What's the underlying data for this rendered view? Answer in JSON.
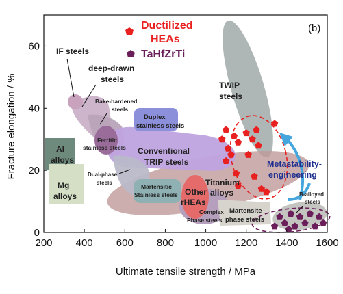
{
  "chart_data": {
    "type": "scatter",
    "title": "",
    "xlabel": "Ultimate tensile strength / MPa",
    "ylabel": "Fracture elongation / %",
    "xlim": [
      200,
      1600
    ],
    "ylim": [
      0,
      70
    ],
    "xticks": [
      200,
      400,
      600,
      800,
      1000,
      1200,
      1400,
      1600
    ],
    "yticks": [
      0,
      20,
      40,
      60
    ],
    "panel_label": "(b)",
    "grid": false,
    "legend_position": "top-center",
    "legend": [
      {
        "name": "Ductilized HEAs",
        "marker": "pentagon",
        "color": "#e8201f"
      },
      {
        "name": "TaHfZrTi",
        "marker": "pentagon",
        "color": "#6b1f5a"
      }
    ],
    "series": [
      {
        "name": "Ductilized HEAs",
        "color": "#e8201f",
        "points": [
          {
            "x": 1080,
            "y": 30
          },
          {
            "x": 1100,
            "y": 33
          },
          {
            "x": 1110,
            "y": 27
          },
          {
            "x": 1125,
            "y": 25
          },
          {
            "x": 1100,
            "y": 23
          },
          {
            "x": 1140,
            "y": 31
          },
          {
            "x": 1160,
            "y": 29
          },
          {
            "x": 1200,
            "y": 32
          },
          {
            "x": 1210,
            "y": 25
          },
          {
            "x": 1230,
            "y": 30
          },
          {
            "x": 1250,
            "y": 33
          },
          {
            "x": 1260,
            "y": 28
          },
          {
            "x": 1240,
            "y": 18
          },
          {
            "x": 1275,
            "y": 14
          },
          {
            "x": 1300,
            "y": 13
          },
          {
            "x": 1150,
            "y": 19
          },
          {
            "x": 1340,
            "y": 35
          },
          {
            "x": 1160,
            "y": 15
          }
        ]
      },
      {
        "name": "TaHfZrTi",
        "color": "#6b1f5a",
        "points": [
          {
            "x": 1340,
            "y": 2
          },
          {
            "x": 1365,
            "y": 5
          },
          {
            "x": 1390,
            "y": 3
          },
          {
            "x": 1420,
            "y": 6
          },
          {
            "x": 1440,
            "y": 2
          },
          {
            "x": 1465,
            "y": 5
          },
          {
            "x": 1490,
            "y": 3
          },
          {
            "x": 1515,
            "y": 6
          },
          {
            "x": 1540,
            "y": 2
          },
          {
            "x": 1560,
            "y": 5
          },
          {
            "x": 1580,
            "y": 3
          },
          {
            "x": 1410,
            "y": 1
          }
        ]
      }
    ],
    "annotations": [
      "Metastability-engineering"
    ],
    "regions": [
      {
        "label": "IF steels",
        "color": "#c9a2bd"
      },
      {
        "label": "deep-drawn steels",
        "color": "#c9a2bd"
      },
      {
        "label": "Bake-hardened steels",
        "color": "#cab1c8"
      },
      {
        "label": "Duplex stainless steels",
        "color": "#8c8fd9"
      },
      {
        "label": "Ferritic stainless steels",
        "color": "#9a6c9a"
      },
      {
        "label": "Conventional TRIP steels",
        "color": "#bfa3df"
      },
      {
        "label": "Al alloys",
        "color": "#6d8a7c"
      },
      {
        "label": "Mg alloys",
        "color": "#d4dfc6"
      },
      {
        "label": "Dual-phase steels",
        "color": "#b9b9c9"
      },
      {
        "label": "TWIP steels",
        "color": "#a6aeae"
      },
      {
        "label": "Titanium alloys",
        "color": "#bf9a9a"
      },
      {
        "label": "Martensitic Stainless steels",
        "color": "#8fb1b3"
      },
      {
        "label": "Other rHEAs",
        "color": "#e56a6a"
      },
      {
        "label": "Complex Phase steels",
        "color": "#b69fbd"
      },
      {
        "label": "Martensite phase steels",
        "color": "#d6d4cc"
      },
      {
        "label": "B-alloyed steels",
        "color": "#c4c4c0"
      }
    ]
  }
}
